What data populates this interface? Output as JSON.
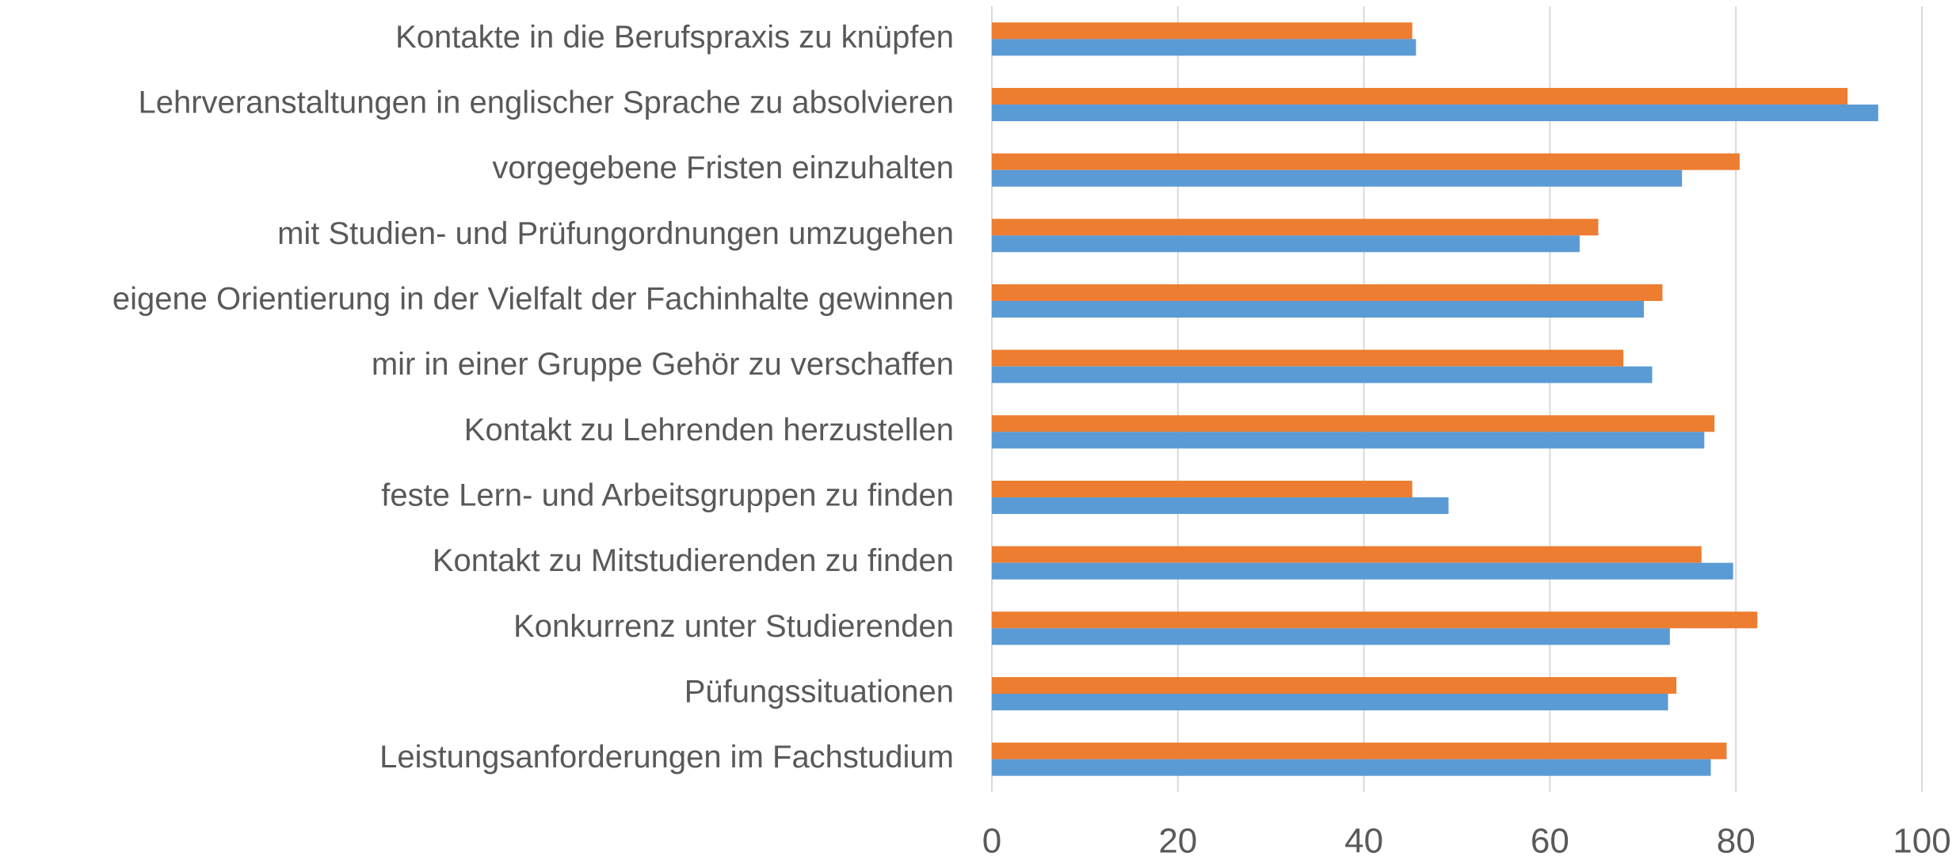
{
  "chart_data": {
    "type": "bar",
    "orientation": "horizontal",
    "categories": [
      "Kontakte in die Berufspraxis zu knüpfen",
      "Lehrveranstaltungen in englischer Sprache zu absolvieren",
      "vorgegebene Fristen einzuhalten",
      "mit Studien- und Prüfungordnungen umzugehen",
      "eigene Orientierung in der Vielfalt der Fachinhalte gewinnen",
      "mir in einer Gruppe Gehör zu verschaffen",
      "Kontakt zu Lehrenden herzustellen",
      "feste Lern- und Arbeitsgruppen zu finden",
      "Kontakt zu Mitstudierenden zu finden",
      "Konkurrenz unter Studierenden",
      "Püfungssituationen",
      "Leistungsanforderungen im Fachstudium"
    ],
    "series": [
      {
        "color": "#ed7d31",
        "values": [
          45.2,
          92.0,
          80.4,
          65.2,
          72.1,
          67.9,
          77.7,
          45.2,
          76.3,
          82.3,
          73.6,
          79.0
        ]
      },
      {
        "color": "#5b9bd5",
        "values": [
          45.6,
          95.3,
          74.2,
          63.2,
          70.1,
          71.0,
          76.6,
          49.1,
          79.7,
          72.9,
          72.7,
          77.3
        ]
      }
    ],
    "xlim": [
      0,
      100
    ],
    "xticks": [
      0,
      20,
      40,
      60,
      80,
      100
    ],
    "grid": true
  }
}
